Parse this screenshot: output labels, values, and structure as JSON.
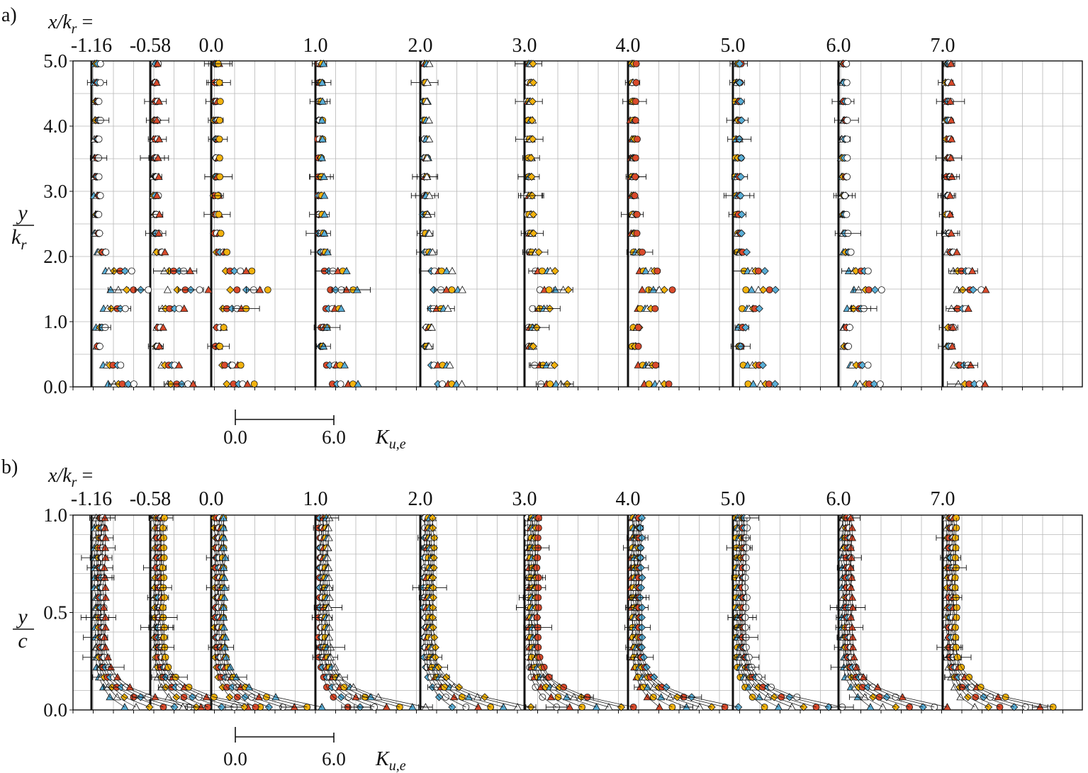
{
  "chart_data": [
    {
      "type": "scatter",
      "panel_label": "a)",
      "x_header": "x/k",
      "x_header_sub": "r",
      "x_header_eq": " =",
      "ylabel_num": "y",
      "ylabel_den": "k",
      "ylabel_den_sub": "r",
      "ylim": [
        0,
        5
      ],
      "y_ticks": [
        "0.0",
        "1.0",
        "2.0",
        "3.0",
        "4.0",
        "5.0"
      ],
      "y_tick_values": [
        0,
        1,
        2,
        3,
        4,
        5
      ],
      "stations": [
        -1.16,
        -0.58,
        0.0,
        1.0,
        2.0,
        3.0,
        4.0,
        5.0,
        6.0,
        7.0
      ],
      "station_labels": [
        "-1.16",
        "-0.58",
        "0.0",
        "1.0",
        "2.0",
        "3.0",
        "4.0",
        "5.0",
        "6.0",
        "7.0"
      ],
      "scale_bar": {
        "start_label": "0.0",
        "end_label": "6.0",
        "quantity": "K",
        "quantity_sub": "u,e",
        "span": 6.0
      },
      "grid": true,
      "series_markers": [
        {
          "marker": "triangle",
          "color": "#5aaed6"
        },
        {
          "marker": "triangle",
          "color": "#ffffff"
        },
        {
          "marker": "diamond",
          "color": "#f2b20e"
        },
        {
          "marker": "circle",
          "color": "#d94a2b"
        },
        {
          "marker": "diamond",
          "color": "#5aaed6"
        },
        {
          "marker": "circle",
          "color": "#ffffff"
        },
        {
          "marker": "triangle",
          "color": "#d94a2b"
        },
        {
          "marker": "circle",
          "color": "#f2b20e"
        }
      ]
    },
    {
      "type": "scatter",
      "panel_label": "b)",
      "x_header": "x/k",
      "x_header_sub": "r",
      "x_header_eq": " =",
      "ylabel_num": "y",
      "ylabel_den": "c",
      "ylim": [
        0,
        1
      ],
      "y_ticks": [
        "0.0",
        "0.5",
        "1.0"
      ],
      "y_tick_values": [
        0,
        0.5,
        1
      ],
      "stations": [
        -1.16,
        -0.58,
        0.0,
        1.0,
        2.0,
        3.0,
        4.0,
        5.0,
        6.0,
        7.0
      ],
      "station_labels": [
        "-1.16",
        "-0.58",
        "0.0",
        "1.0",
        "2.0",
        "3.0",
        "4.0",
        "5.0",
        "6.0",
        "7.0"
      ],
      "scale_bar": {
        "start_label": "0.0",
        "end_label": "6.0",
        "quantity": "K",
        "quantity_sub": "u,e",
        "span": 6.0
      },
      "grid": true
    }
  ]
}
